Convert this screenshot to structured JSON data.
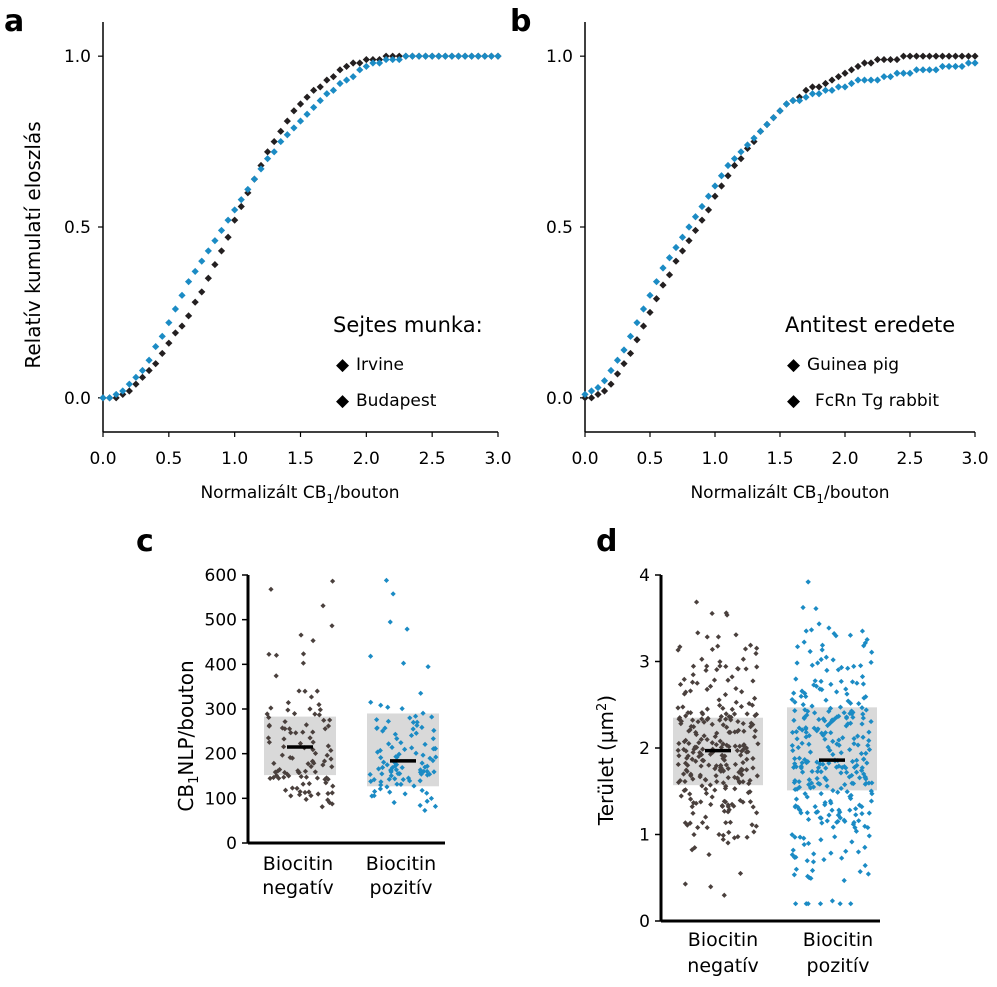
{
  "colors": {
    "black_series": "#231f20",
    "blue_series": "#1b8bc4",
    "dot_dark": "#4a403d",
    "box_fill": "#d9d9d9"
  },
  "chart_data": [
    {
      "id": "a",
      "type": "line",
      "panel_label": "a",
      "xlabel": "Normalizált CB",
      "xlabel_sub": "1",
      "xlabel_tail": "/bouton",
      "ylabel": "Relatív kumulatí eloszlás",
      "xlim": [
        0,
        3.0
      ],
      "ylim": [
        -0.1,
        1.1
      ],
      "xticks": [
        "0.0",
        "0.5",
        "1.0",
        "1.5",
        "2.0",
        "2.5",
        "3.0"
      ],
      "yticks": [
        "0.0",
        "0.5",
        "1.0"
      ],
      "legend_title": "Sejtes munka:",
      "legend_location": "lower-right",
      "series": [
        {
          "name": "Irvine",
          "color": "#231f20",
          "x": [
            0.0,
            0.05,
            0.1,
            0.15,
            0.2,
            0.25,
            0.3,
            0.35,
            0.4,
            0.45,
            0.5,
            0.55,
            0.6,
            0.65,
            0.7,
            0.75,
            0.8,
            0.85,
            0.9,
            0.95,
            1.0,
            1.05,
            1.1,
            1.15,
            1.2,
            1.25,
            1.3,
            1.35,
            1.4,
            1.45,
            1.5,
            1.55,
            1.6,
            1.65,
            1.7,
            1.75,
            1.8,
            1.85,
            1.9,
            1.95,
            2.0,
            2.05,
            2.1,
            2.15,
            2.2,
            2.25,
            2.3,
            2.35,
            2.4,
            2.45,
            2.5,
            2.55,
            2.6,
            2.65,
            2.7,
            2.75,
            2.8,
            2.85,
            2.9,
            2.95,
            3.0
          ],
          "y": [
            0.0,
            0.0,
            0.0,
            0.01,
            0.02,
            0.04,
            0.06,
            0.08,
            0.1,
            0.13,
            0.16,
            0.19,
            0.21,
            0.24,
            0.28,
            0.31,
            0.35,
            0.39,
            0.43,
            0.47,
            0.52,
            0.56,
            0.6,
            0.64,
            0.68,
            0.72,
            0.75,
            0.78,
            0.81,
            0.84,
            0.86,
            0.88,
            0.9,
            0.91,
            0.93,
            0.94,
            0.96,
            0.97,
            0.98,
            0.98,
            0.99,
            0.99,
            0.99,
            1.0,
            1.0,
            1.0,
            1.0,
            1.0,
            1.0,
            1.0,
            1.0,
            1.0,
            1.0,
            1.0,
            1.0,
            1.0,
            1.0,
            1.0,
            1.0,
            1.0,
            1.0
          ]
        },
        {
          "name": "Budapest",
          "color": "#1b8bc4",
          "x": [
            0.0,
            0.05,
            0.1,
            0.15,
            0.2,
            0.25,
            0.3,
            0.35,
            0.4,
            0.45,
            0.5,
            0.55,
            0.6,
            0.65,
            0.7,
            0.75,
            0.8,
            0.85,
            0.9,
            0.95,
            1.0,
            1.05,
            1.1,
            1.15,
            1.2,
            1.25,
            1.3,
            1.35,
            1.4,
            1.45,
            1.5,
            1.55,
            1.6,
            1.65,
            1.7,
            1.75,
            1.8,
            1.85,
            1.9,
            1.95,
            2.0,
            2.05,
            2.1,
            2.15,
            2.2,
            2.25,
            2.3,
            2.35,
            2.4,
            2.45,
            2.5,
            2.55,
            2.6,
            2.65,
            2.7,
            2.75,
            2.8,
            2.85,
            2.9,
            2.95,
            3.0
          ],
          "y": [
            0.0,
            0.0,
            0.01,
            0.02,
            0.04,
            0.06,
            0.08,
            0.11,
            0.15,
            0.18,
            0.22,
            0.26,
            0.3,
            0.34,
            0.37,
            0.4,
            0.43,
            0.46,
            0.49,
            0.52,
            0.55,
            0.58,
            0.61,
            0.64,
            0.67,
            0.7,
            0.72,
            0.75,
            0.77,
            0.79,
            0.81,
            0.83,
            0.85,
            0.87,
            0.89,
            0.9,
            0.92,
            0.93,
            0.94,
            0.96,
            0.97,
            0.98,
            0.98,
            0.99,
            0.99,
            0.99,
            1.0,
            1.0,
            1.0,
            1.0,
            1.0,
            1.0,
            1.0,
            1.0,
            1.0,
            1.0,
            1.0,
            1.0,
            1.0,
            1.0,
            1.0
          ]
        }
      ]
    },
    {
      "id": "b",
      "type": "line",
      "panel_label": "b",
      "xlabel": "Normalizált CB",
      "xlabel_sub": "1",
      "xlabel_tail": "/bouton",
      "ylabel": "",
      "xlim": [
        0,
        3.0
      ],
      "ylim": [
        -0.1,
        1.1
      ],
      "xticks": [
        "0.0",
        "0.5",
        "1.0",
        "1.5",
        "2.0",
        "2.5",
        "3.0"
      ],
      "yticks": [
        "0.0",
        "0.5",
        "1.0"
      ],
      "legend_title": "Antitest eredete",
      "legend_location": "lower-right",
      "series": [
        {
          "name": "Guinea pig",
          "color": "#231f20",
          "x": [
            0.0,
            0.05,
            0.1,
            0.15,
            0.2,
            0.25,
            0.3,
            0.35,
            0.4,
            0.45,
            0.5,
            0.55,
            0.6,
            0.65,
            0.7,
            0.75,
            0.8,
            0.85,
            0.9,
            0.95,
            1.0,
            1.05,
            1.1,
            1.15,
            1.2,
            1.25,
            1.3,
            1.35,
            1.4,
            1.45,
            1.5,
            1.55,
            1.6,
            1.65,
            1.7,
            1.75,
            1.8,
            1.85,
            1.9,
            1.95,
            2.0,
            2.05,
            2.1,
            2.15,
            2.2,
            2.25,
            2.3,
            2.35,
            2.4,
            2.45,
            2.5,
            2.55,
            2.6,
            2.65,
            2.7,
            2.75,
            2.8,
            2.85,
            2.9,
            2.95,
            3.0
          ],
          "y": [
            0.0,
            0.0,
            0.01,
            0.02,
            0.04,
            0.07,
            0.1,
            0.13,
            0.17,
            0.21,
            0.25,
            0.29,
            0.33,
            0.36,
            0.4,
            0.43,
            0.46,
            0.49,
            0.52,
            0.55,
            0.59,
            0.62,
            0.65,
            0.68,
            0.7,
            0.73,
            0.75,
            0.78,
            0.8,
            0.82,
            0.84,
            0.86,
            0.87,
            0.88,
            0.9,
            0.91,
            0.91,
            0.92,
            0.93,
            0.94,
            0.95,
            0.96,
            0.97,
            0.98,
            0.98,
            0.99,
            0.99,
            0.99,
            0.99,
            1.0,
            1.0,
            1.0,
            1.0,
            1.0,
            1.0,
            1.0,
            1.0,
            1.0,
            1.0,
            1.0,
            1.0
          ]
        },
        {
          "name": "FcRn Tg rabbit",
          "color": "#1b8bc4",
          "x": [
            0.0,
            0.05,
            0.1,
            0.15,
            0.2,
            0.25,
            0.3,
            0.35,
            0.4,
            0.45,
            0.5,
            0.55,
            0.6,
            0.65,
            0.7,
            0.75,
            0.8,
            0.85,
            0.9,
            0.95,
            1.0,
            1.05,
            1.1,
            1.15,
            1.2,
            1.25,
            1.3,
            1.35,
            1.4,
            1.45,
            1.5,
            1.55,
            1.6,
            1.65,
            1.7,
            1.75,
            1.8,
            1.85,
            1.9,
            1.95,
            2.0,
            2.05,
            2.1,
            2.15,
            2.2,
            2.25,
            2.3,
            2.35,
            2.4,
            2.45,
            2.5,
            2.55,
            2.6,
            2.65,
            2.7,
            2.75,
            2.8,
            2.85,
            2.9,
            2.95,
            3.0
          ],
          "y": [
            0.01,
            0.02,
            0.03,
            0.05,
            0.08,
            0.11,
            0.14,
            0.18,
            0.22,
            0.26,
            0.3,
            0.34,
            0.38,
            0.41,
            0.44,
            0.47,
            0.5,
            0.53,
            0.56,
            0.59,
            0.62,
            0.65,
            0.68,
            0.7,
            0.72,
            0.74,
            0.76,
            0.78,
            0.8,
            0.82,
            0.84,
            0.86,
            0.87,
            0.87,
            0.88,
            0.89,
            0.89,
            0.9,
            0.9,
            0.91,
            0.91,
            0.92,
            0.93,
            0.93,
            0.93,
            0.93,
            0.94,
            0.94,
            0.95,
            0.95,
            0.95,
            0.96,
            0.96,
            0.96,
            0.96,
            0.97,
            0.97,
            0.97,
            0.97,
            0.98,
            0.98
          ]
        }
      ]
    },
    {
      "id": "c",
      "type": "scatter",
      "panel_label": "c",
      "ylabel": "CB",
      "ylabel_sub": "1",
      "ylabel_tail": "NLP/bouton",
      "ylim": [
        0,
        600
      ],
      "yticks": [
        "0",
        "100",
        "200",
        "300",
        "400",
        "500",
        "600"
      ],
      "categories": [
        [
          "Biocitin",
          "negatív"
        ],
        [
          "Biocitin",
          "pozitív"
        ]
      ],
      "groups": [
        {
          "color": "#4a403d",
          "median": 215,
          "q1": 152,
          "q3": 283,
          "n": 110
        },
        {
          "color": "#1b8bc4",
          "median": 184,
          "q1": 127,
          "q3": 290,
          "n": 110
        }
      ]
    },
    {
      "id": "d",
      "type": "scatter",
      "panel_label": "d",
      "ylabel": "Terület (µm",
      "ylabel_sup": "2",
      "ylabel_tail": ")",
      "ylim": [
        0,
        4
      ],
      "yticks": [
        "0",
        "1",
        "2",
        "3",
        "4"
      ],
      "categories": [
        [
          "Biocitin",
          "negatív"
        ],
        [
          "Biocitin",
          "pozitív"
        ]
      ],
      "groups": [
        {
          "color": "#4a403d",
          "median": 1.97,
          "q1": 1.57,
          "q3": 2.35,
          "n": 280
        },
        {
          "color": "#1b8bc4",
          "median": 1.86,
          "q1": 1.51,
          "q3": 2.47,
          "n": 320
        }
      ]
    }
  ]
}
